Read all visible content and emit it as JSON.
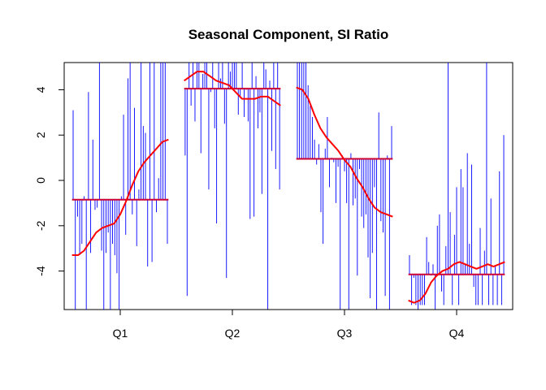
{
  "chart_data": {
    "type": "line",
    "title": "Seasonal Component, SI Ratio",
    "xlabel": "",
    "ylabel": "",
    "ylim": [
      -5.7,
      5.2
    ],
    "y_ticks": [
      -4,
      -2,
      0,
      2,
      4
    ],
    "y_tick_labels": [
      "-4",
      "-2",
      "0",
      "2",
      "4"
    ],
    "categories": [
      "Q1",
      "Q2",
      "Q3",
      "Q4"
    ],
    "colors": {
      "si_ratio": "#0000ff",
      "seasonal_factor": "#ff0000",
      "quarter_mean": "#cc0033"
    },
    "quarter_means": [
      -0.85,
      4.05,
      0.95,
      -4.15
    ],
    "si_ratio": [
      [
        3.1,
        -5.8,
        -1.6,
        -3.3,
        -2.8,
        -0.7,
        -5.8,
        3.9,
        -3.2,
        1.8,
        -1.3,
        -1.2,
        5.2,
        -3.1,
        -5.8,
        -3.2,
        -2.3,
        -5.8,
        -2.8,
        -3.3,
        -4.1,
        -5.8,
        -0.7,
        2.9,
        -2.4,
        4.5,
        5.2,
        -1.5,
        3.2,
        -2.9,
        -0.4,
        5.2,
        2.4,
        2.1,
        -3.8,
        5.2,
        -3.6,
        5.2,
        -1.4,
        0.1,
        5.2,
        5.2,
        5.2,
        -2.8
      ],
      [
        1.1,
        -5.1,
        5.2,
        3.3,
        5.2,
        2.6,
        5.2,
        5.2,
        1.2,
        4.7,
        5.2,
        5.2,
        -0.4,
        3.9,
        5.2,
        2.3,
        -1.9,
        5.2,
        4.5,
        5.2,
        2.5,
        -4.3,
        5.2,
        4.8,
        5.2,
        5.2,
        5.2,
        2.9,
        3.7,
        5.2,
        2.8,
        4.0,
        2.6,
        -1.7,
        5.2,
        -1.6,
        4.6,
        2.3,
        3.0,
        -0.6,
        5.2,
        4.9,
        -5.8,
        4.4,
        1.3,
        5.2,
        0.5,
        5.2,
        -0.4
      ],
      [
        5.2,
        5.2,
        5.2,
        5.2,
        5.2,
        4.2,
        3.3,
        2.8,
        1.8,
        0.7,
        1.6,
        -1.4,
        -2.8,
        1.4,
        2.8,
        -0.3,
        1.0,
        0.8,
        -1.0,
        0.6,
        -5.8,
        1.1,
        0.4,
        -1.0,
        -5.8,
        1.2,
        -1.1,
        -0.8,
        -4.2,
        0.5,
        -1.6,
        -2.1,
        -1.5,
        -3.4,
        -5.2,
        -3.2,
        -0.3,
        -5.8,
        3.0,
        -1.8,
        -2.3,
        -5.1,
        1.1,
        -5.8,
        2.4
      ],
      [
        -3.3,
        -5.5,
        -4.3,
        -5.5,
        -5.8,
        -5.5,
        -5.5,
        -5.5,
        -2.5,
        -3.6,
        -4.2,
        -3.7,
        -5.8,
        -2.0,
        -1.5,
        -4.9,
        -5.5,
        -2.9,
        5.2,
        -1.4,
        -5.5,
        -2.4,
        -0.3,
        -5.5,
        0.5,
        -0.3,
        -3.7,
        1.2,
        -2.8,
        0.7,
        -4.7,
        -5.5,
        -5.5,
        -2.1,
        -5.5,
        -3.1,
        5.2,
        -5.5,
        -0.8,
        -5.5,
        -3.8,
        -5.5,
        0.4,
        -5.5,
        2.0
      ]
    ],
    "seasonal_factor": [
      [
        -3.3,
        -3.3,
        -3.1,
        -2.7,
        -2.3,
        -2.1,
        -2.0,
        -1.9,
        -1.5,
        -0.9,
        -0.2,
        0.4,
        0.8,
        1.1,
        1.4,
        1.7,
        1.8
      ],
      [
        4.4,
        4.6,
        4.8,
        4.8,
        4.6,
        4.4,
        4.3,
        4.2,
        3.9,
        3.6,
        3.6,
        3.6,
        3.7,
        3.7,
        3.5,
        3.3
      ],
      [
        4.1,
        4.0,
        3.6,
        2.9,
        2.3,
        1.9,
        1.6,
        1.3,
        0.9,
        0.6,
        0.1,
        -0.3,
        -0.8,
        -1.2,
        -1.4,
        -1.5,
        -1.6
      ],
      [
        -5.3,
        -5.4,
        -5.3,
        -5.0,
        -4.5,
        -4.2,
        -4.0,
        -3.9,
        -3.7,
        -3.6,
        -3.7,
        -3.8,
        -3.9,
        -3.8,
        -3.7,
        -3.8,
        -3.7,
        -3.6
      ]
    ]
  }
}
